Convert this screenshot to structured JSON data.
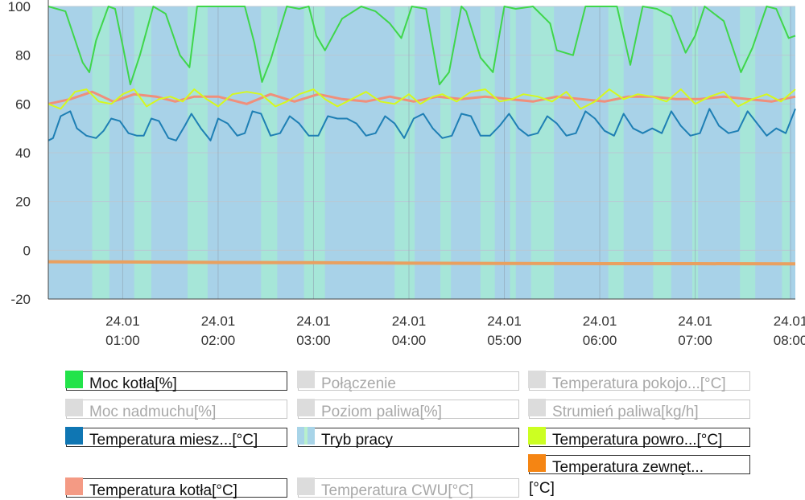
{
  "chart_data": {
    "type": "line",
    "ylim": [
      -20,
      100
    ],
    "yticks": [
      100,
      80,
      60,
      40,
      20,
      0,
      -20
    ],
    "xlim": [
      0.22,
      8.05
    ],
    "xticks": [
      {
        "x": 1,
        "date": "24.01",
        "time": "01:00"
      },
      {
        "x": 2,
        "date": "24.01",
        "time": "02:00"
      },
      {
        "x": 3,
        "date": "24.01",
        "time": "03:00"
      },
      {
        "x": 4,
        "date": "24.01",
        "time": "04:00"
      },
      {
        "x": 5,
        "date": "24.01",
        "time": "05:00"
      },
      {
        "x": 6,
        "date": "24.01",
        "time": "06:00"
      },
      {
        "x": 7,
        "date": "24.01",
        "time": "07:00"
      },
      {
        "x": 8,
        "date": "24.01",
        "time": "08:00"
      }
    ],
    "tryb_pracy_bands": [
      [
        0.68,
        0.86
      ],
      [
        1.12,
        1.3
      ],
      [
        1.68,
        1.89
      ],
      [
        2.45,
        2.62
      ],
      [
        2.9,
        3.12
      ],
      [
        3.85,
        4.06
      ],
      [
        4.33,
        4.44
      ],
      [
        4.75,
        4.9
      ],
      [
        5.06,
        5.12
      ],
      [
        5.28,
        5.52
      ],
      [
        6.09,
        6.25
      ],
      [
        6.56,
        6.75
      ],
      [
        6.97,
        7.03
      ],
      [
        7.47,
        7.63
      ],
      [
        7.91,
        7.99
      ]
    ],
    "series": [
      {
        "name": "Moc kotła[%]",
        "color": "#3fd64b",
        "x": [
          0.22,
          0.4,
          0.58,
          0.65,
          0.72,
          0.85,
          0.92,
          1.0,
          1.08,
          1.18,
          1.32,
          1.45,
          1.6,
          1.7,
          1.78,
          1.98,
          2.28,
          2.38,
          2.46,
          2.55,
          2.72,
          2.85,
          2.95,
          3.03,
          3.12,
          3.3,
          3.5,
          3.65,
          3.8,
          3.92,
          4.03,
          4.18,
          4.32,
          4.42,
          4.55,
          4.6,
          4.75,
          4.88,
          5.0,
          5.12,
          5.3,
          5.48,
          5.55,
          5.72,
          5.85,
          6.0,
          6.1,
          6.18,
          6.32,
          6.45,
          6.6,
          6.75,
          6.9,
          7.0,
          7.1,
          7.3,
          7.48,
          7.6,
          7.75,
          7.85,
          7.98,
          8.05
        ],
        "y": [
          100,
          98,
          77,
          73,
          86,
          100,
          99,
          84,
          68,
          80,
          100,
          97,
          80,
          75,
          100,
          100,
          100,
          85,
          69,
          78,
          100,
          99,
          100,
          88,
          82,
          95,
          100,
          98,
          93,
          87,
          100,
          99,
          68,
          73,
          100,
          98,
          79,
          73,
          100,
          99,
          100,
          93,
          82,
          80,
          100,
          100,
          100,
          100,
          76,
          100,
          99,
          96,
          81,
          88,
          100,
          94,
          73,
          83,
          100,
          99,
          87,
          88
        ]
      },
      {
        "name": "Temperatura kotła[°C]",
        "color": "#f08f7b",
        "x": [
          0.22,
          0.45,
          0.68,
          0.9,
          1.12,
          1.35,
          1.55,
          1.75,
          2.0,
          2.3,
          2.55,
          2.8,
          3.05,
          3.3,
          3.55,
          3.8,
          4.05,
          4.3,
          4.55,
          4.8,
          5.05,
          5.3,
          5.55,
          5.8,
          6.05,
          6.3,
          6.55,
          6.8,
          7.05,
          7.3,
          7.55,
          7.8,
          8.05
        ],
        "y": [
          60,
          62,
          65,
          61,
          64,
          63,
          61,
          63,
          63,
          60,
          64,
          61,
          64,
          62,
          61,
          63,
          61,
          63,
          62,
          63,
          62,
          61,
          63,
          62,
          61,
          63,
          63,
          62,
          62,
          63,
          62,
          61,
          63
        ]
      },
      {
        "name": "Temperatura powro...[°C]",
        "color": "#d6f81e",
        "x": [
          0.22,
          0.35,
          0.5,
          0.62,
          0.75,
          0.88,
          1.0,
          1.12,
          1.25,
          1.38,
          1.5,
          1.63,
          1.75,
          1.88,
          2.0,
          2.15,
          2.3,
          2.45,
          2.6,
          2.72,
          2.85,
          3.0,
          3.12,
          3.25,
          3.4,
          3.55,
          3.7,
          3.85,
          4.0,
          4.12,
          4.25,
          4.35,
          4.5,
          4.65,
          4.8,
          4.95,
          5.08,
          5.2,
          5.35,
          5.5,
          5.65,
          5.8,
          5.95,
          6.1,
          6.25,
          6.4,
          6.55,
          6.7,
          6.85,
          7.0,
          7.15,
          7.3,
          7.45,
          7.6,
          7.75,
          7.9,
          8.05
        ],
        "y": [
          60,
          58,
          65,
          66,
          61,
          60,
          64,
          66,
          59,
          62,
          63,
          61,
          66,
          62,
          59,
          64,
          65,
          64,
          59,
          61,
          64,
          66,
          62,
          59,
          62,
          65,
          61,
          60,
          64,
          60,
          63,
          64,
          61,
          65,
          66,
          61,
          62,
          64,
          63,
          61,
          65,
          58,
          61,
          66,
          62,
          64,
          63,
          61,
          66,
          60,
          63,
          65,
          59,
          62,
          64,
          61,
          66
        ]
      },
      {
        "name": "Temperatura miesz...[°C]",
        "color": "#1e7fb4",
        "x": [
          0.22,
          0.27,
          0.35,
          0.45,
          0.52,
          0.62,
          0.72,
          0.8,
          0.88,
          0.97,
          1.06,
          1.15,
          1.22,
          1.3,
          1.38,
          1.48,
          1.56,
          1.65,
          1.72,
          1.82,
          1.92,
          2.0,
          2.1,
          2.2,
          2.28,
          2.36,
          2.45,
          2.55,
          2.65,
          2.75,
          2.85,
          2.95,
          3.05,
          3.15,
          3.25,
          3.35,
          3.45,
          3.55,
          3.65,
          3.75,
          3.85,
          3.95,
          4.05,
          4.15,
          4.25,
          4.35,
          4.45,
          4.55,
          4.65,
          4.75,
          4.85,
          4.95,
          5.05,
          5.15,
          5.25,
          5.35,
          5.45,
          5.55,
          5.65,
          5.75,
          5.85,
          5.95,
          6.05,
          6.15,
          6.25,
          6.35,
          6.45,
          6.55,
          6.65,
          6.75,
          6.85,
          6.95,
          7.05,
          7.15,
          7.25,
          7.35,
          7.45,
          7.55,
          7.65,
          7.75,
          7.85,
          7.95,
          8.05
        ],
        "y": [
          45,
          46,
          55,
          57,
          50,
          47,
          46,
          49,
          54,
          53,
          48,
          47,
          47,
          54,
          53,
          46,
          45,
          51,
          56,
          50,
          45,
          54,
          52,
          47,
          48,
          57,
          56,
          47,
          48,
          55,
          52,
          47,
          47,
          55,
          54,
          54,
          52,
          47,
          48,
          55,
          52,
          46,
          54,
          56,
          50,
          46,
          47,
          56,
          55,
          47,
          47,
          51,
          56,
          50,
          47,
          48,
          55,
          52,
          47,
          48,
          57,
          54,
          49,
          47,
          56,
          50,
          48,
          50,
          48,
          57,
          51,
          47,
          48,
          58,
          51,
          48,
          49,
          57,
          52,
          47,
          50,
          48,
          58
        ]
      },
      {
        "name": "Temperatura zewnęt...",
        "color": "#e9a060",
        "x": [
          0.22,
          1.0,
          2.0,
          3.0,
          4.0,
          5.0,
          6.0,
          7.0,
          8.05
        ],
        "y": [
          -4.7,
          -4.8,
          -5.0,
          -5.1,
          -5.3,
          -5.4,
          -5.5,
          -5.5,
          -5.6
        ]
      }
    ],
    "legend": [
      {
        "label": "Moc kotła[%]",
        "color": "#22e34a",
        "active": true
      },
      {
        "label": "Połączenie",
        "color": "#dcdcdc",
        "active": false
      },
      {
        "label": "Temperatura pokojo...[°C]",
        "color": "#dcdcdc",
        "active": false
      },
      {
        "label": "Moc nadmuchu[%]",
        "color": "#dcdcdc",
        "active": false
      },
      {
        "label": "Poziom paliwa[%]",
        "color": "#dcdcdc",
        "active": false
      },
      {
        "label": "Strumień paliwa[kg/h]",
        "color": "#dcdcdc",
        "active": false
      },
      {
        "label": "Temperatura miesz...[°C]",
        "color": "#0f76b3",
        "active": true
      },
      {
        "label": "Tryb pracy",
        "color": "#a8d4e8",
        "active": true
      },
      {
        "label": "Temperatura powro...[°C]",
        "color": "#ccff22",
        "active": true
      },
      {
        "label": "Temperatura zewnęt...",
        "color": "#f58513",
        "active": true,
        "wrap": "[°C]"
      },
      {
        "label": "Temperatura kotła[°C]",
        "color": "#f49a84",
        "active": true
      },
      {
        "label": "Temperatura CWU[°C]",
        "color": "#dcdcdc",
        "active": false
      }
    ]
  }
}
